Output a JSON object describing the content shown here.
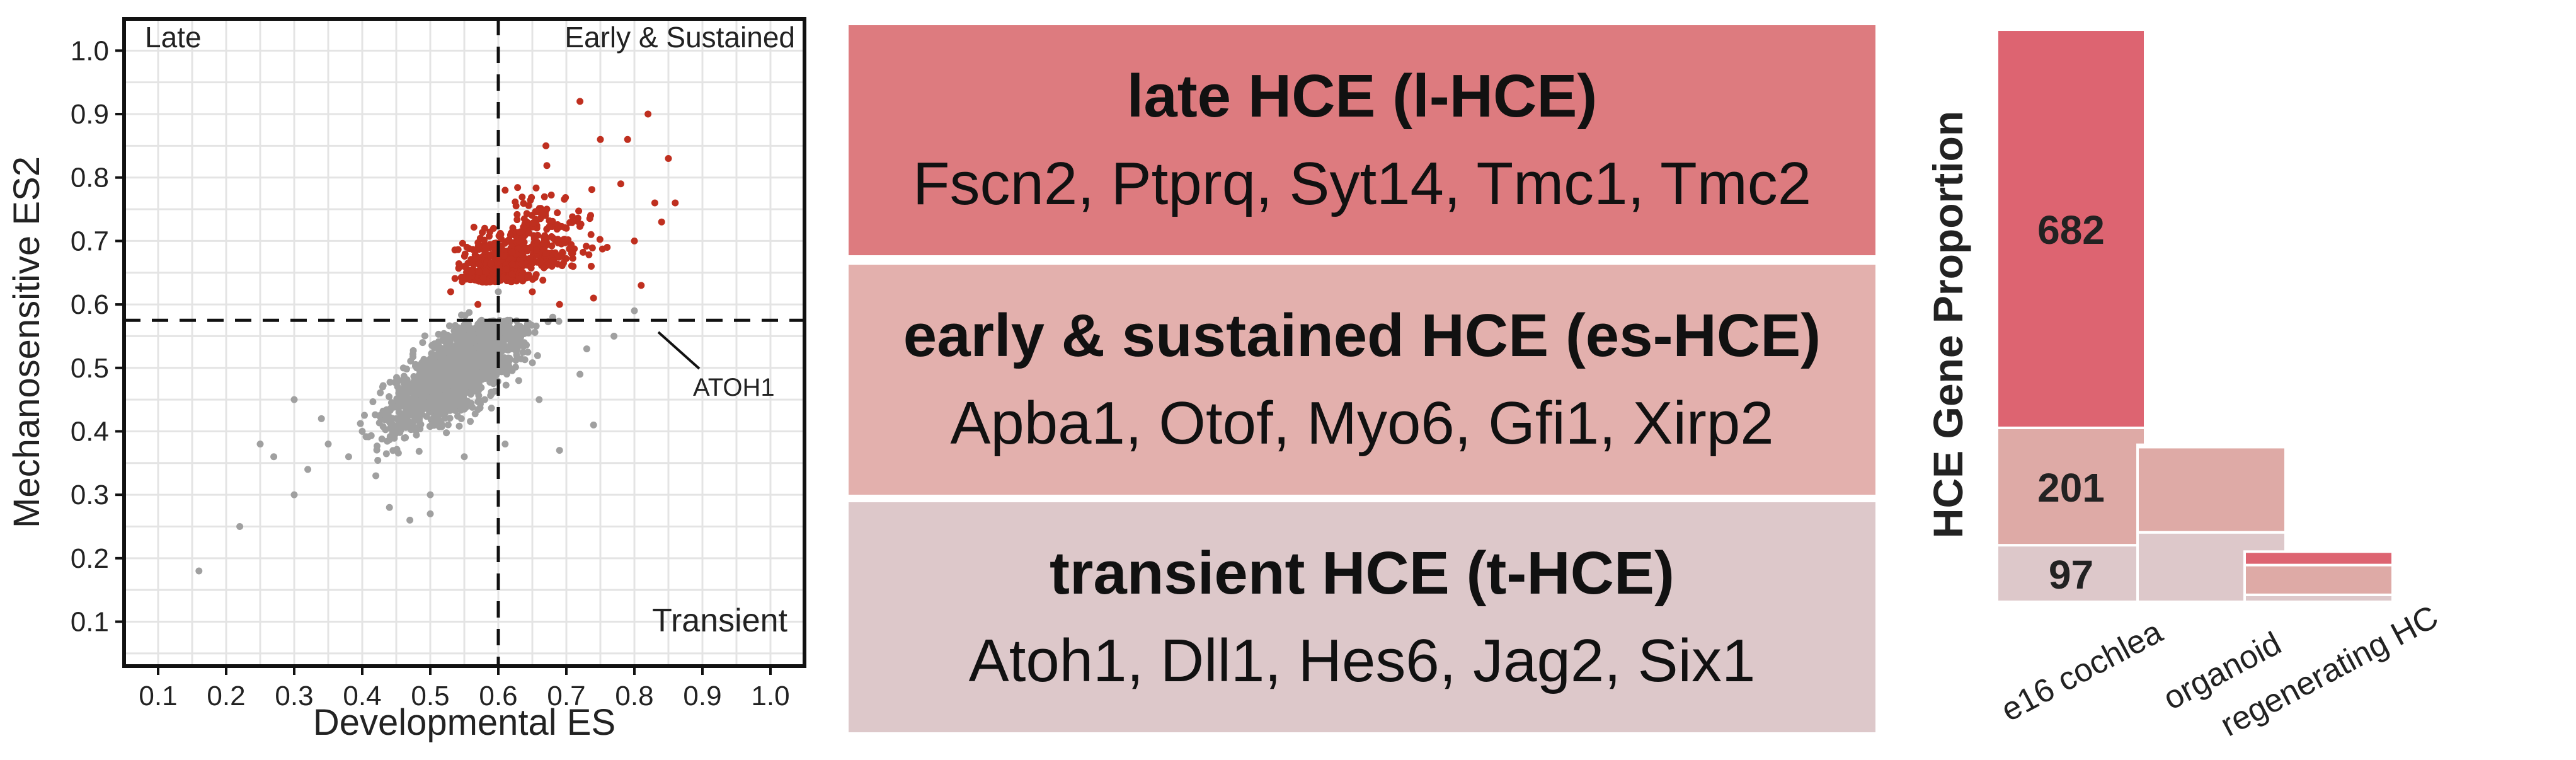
{
  "chart_data": [
    {
      "type": "scatter",
      "xlabel": "Developmental ES",
      "ylabel": "Mechanosensitive ES2",
      "xlim": [
        0.05,
        1.05
      ],
      "ylim": [
        0.03,
        1.05
      ],
      "x_ticks": [
        "0.1",
        "0.2",
        "0.3",
        "0.4",
        "0.5",
        "0.6",
        "0.7",
        "0.8",
        "0.9",
        "1.0"
      ],
      "y_ticks": [
        "0.1",
        "0.2",
        "0.3",
        "0.4",
        "0.5",
        "0.6",
        "0.7",
        "0.8",
        "0.9",
        "1.0"
      ],
      "grid": true,
      "thresholds": {
        "x": 0.6,
        "y": 0.575
      },
      "quadrant_labels": {
        "top_left": "Late",
        "top_right": "Early & Sustained",
        "bottom_right": "Transient"
      },
      "annotation": {
        "text": "ATOH1",
        "x": 0.79,
        "y": 0.575
      },
      "series": [
        {
          "color": "#a0a0a0",
          "points": [
            [
              0.16,
              0.18
            ],
            [
              0.22,
              0.25
            ],
            [
              0.3,
              0.3
            ],
            [
              0.32,
              0.34
            ],
            [
              0.35,
              0.38
            ],
            [
              0.38,
              0.36
            ],
            [
              0.42,
              0.33
            ],
            [
              0.44,
              0.28
            ],
            [
              0.47,
              0.26
            ],
            [
              0.5,
              0.3
            ],
            [
              0.5,
              0.27
            ],
            [
              0.3,
              0.45
            ],
            [
              0.45,
              0.42
            ],
            [
              0.55,
              0.36
            ],
            [
              0.61,
              0.38
            ],
            [
              0.69,
              0.37
            ],
            [
              0.74,
              0.41
            ],
            [
              0.72,
              0.49
            ],
            [
              0.66,
              0.45
            ],
            [
              0.63,
              0.48
            ],
            [
              0.62,
              0.53
            ],
            [
              0.68,
              0.58
            ],
            [
              0.77,
              0.55
            ],
            [
              0.8,
              0.59
            ],
            [
              0.73,
              0.53
            ],
            [
              0.58,
              0.45
            ],
            [
              0.52,
              0.44
            ],
            [
              0.48,
              0.5
            ],
            [
              0.43,
              0.47
            ],
            [
              0.55,
              0.55
            ],
            [
              0.4,
              0.4
            ],
            [
              0.27,
              0.36
            ],
            [
              0.34,
              0.42
            ],
            [
              0.25,
              0.38
            ],
            [
              0.6,
              0.62
            ]
          ]
        },
        {
          "color": "#bf2f1f",
          "points": [
            [
              0.72,
              0.92
            ],
            [
              0.75,
              0.86
            ],
            [
              0.82,
              0.9
            ],
            [
              0.67,
              0.85
            ],
            [
              0.79,
              0.86
            ],
            [
              0.85,
              0.83
            ],
            [
              0.78,
              0.79
            ],
            [
              0.83,
              0.76
            ],
            [
              0.61,
              0.78
            ],
            [
              0.58,
              0.72
            ],
            [
              0.63,
              0.7
            ],
            [
              0.7,
              0.72
            ],
            [
              0.76,
              0.69
            ],
            [
              0.8,
              0.7
            ],
            [
              0.84,
              0.73
            ],
            [
              0.81,
              0.63
            ],
            [
              0.86,
              0.76
            ],
            [
              0.55,
              0.66
            ],
            [
              0.53,
              0.62
            ],
            [
              0.57,
              0.6
            ],
            [
              0.65,
              0.62
            ],
            [
              0.69,
              0.6
            ],
            [
              0.74,
              0.61
            ],
            [
              0.6,
              0.64
            ],
            [
              0.67,
              0.68
            ],
            [
              0.71,
              0.66
            ]
          ]
        }
      ]
    },
    {
      "type": "bar",
      "ylabel": "HCE Gene Proportion",
      "categories": [
        "e16 cochlea",
        "organoid",
        "regenerating HC"
      ],
      "stack_order_bottom_to_top": [
        "t-HCE",
        "es-HCE",
        "l-HCE"
      ],
      "colors": {
        "l-HCE": "#dd6471",
        "es-HCE": "#deaaa6",
        "t-HCE": "#ddc8ca"
      },
      "series": [
        {
          "values": [
            97,
            119,
            12
          ]
        },
        {
          "values": [
            201,
            146,
            51
          ]
        },
        {
          "values": [
            682,
            4,
            23
          ]
        }
      ],
      "data_labels": {
        "e16 cochlea": [
          "97",
          "201",
          "682"
        ]
      }
    }
  ],
  "boxes": [
    {
      "title": "late HCE (l-HCE)",
      "genes": "Fscn2, Ptprq, Syt14, Tmc1, Tmc2",
      "color": "#dd7b7f"
    },
    {
      "title": "early & sustained HCE (es-HCE)",
      "genes": "Apba1, Otof, Myo6, Gfi1, Xirp2",
      "color": "#e3b0ad"
    },
    {
      "title": "transient HCE (t-HCE)",
      "genes": "Atoh1, Dll1, Hes6, Jag2, Six1",
      "color": "#ddc8ca"
    }
  ]
}
